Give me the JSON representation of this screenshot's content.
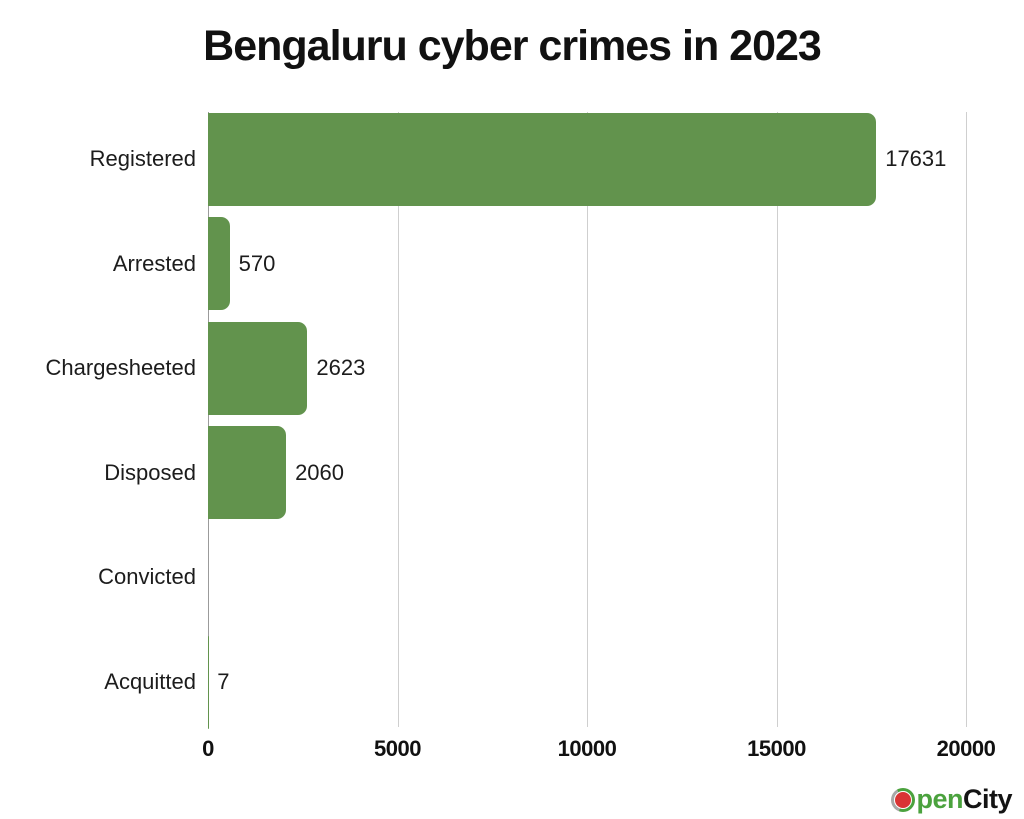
{
  "chart_data": {
    "type": "bar",
    "orientation": "horizontal",
    "title": "Bengaluru cyber crimes in 2023",
    "categories": [
      "Registered",
      "Arrested",
      "Chargesheeted",
      "Disposed",
      "Convicted",
      "Acquitted"
    ],
    "values": [
      17631,
      570,
      2623,
      2060,
      0,
      7
    ],
    "value_labels": [
      "17631",
      "570",
      "2623",
      "2060",
      "",
      "7"
    ],
    "xlabel": "",
    "ylabel": "",
    "xlim": [
      0,
      20000
    ],
    "xticks": [
      0,
      5000,
      10000,
      15000,
      20000
    ],
    "xtick_labels": [
      "0",
      "5000",
      "10000",
      "15000",
      "20000"
    ],
    "grid": true,
    "legend": false,
    "bar_color": "#62934D",
    "gridline_color": "#CFCFCF",
    "zero_axis_color": "#9B9B9B",
    "text_color": "#1C1C1C"
  },
  "branding": {
    "logo_name": "OpenCity",
    "text_after_o": "pen",
    "text_city": "City",
    "logo_green": "#4BA23E",
    "logo_red": "#D93434",
    "logo_gray": "#A8A8A8",
    "logo_black": "#141414"
  }
}
